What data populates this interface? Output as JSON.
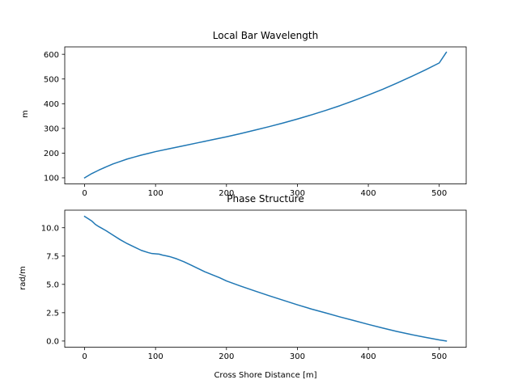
{
  "colors": {
    "series": "#1f77b4"
  },
  "chart_data": [
    {
      "type": "line",
      "title": "Local Bar Wavelength",
      "xlabel": "",
      "ylabel": "m",
      "xlim": [
        -28,
        538
      ],
      "ylim": [
        75,
        630
      ],
      "xticks": [
        0,
        100,
        200,
        300,
        400,
        500
      ],
      "yticks": [
        100,
        200,
        300,
        400,
        500,
        600
      ],
      "xtick_labels": [
        "0",
        "100",
        "200",
        "300",
        "400",
        "500"
      ],
      "ytick_labels": [
        "100",
        "200",
        "300",
        "400",
        "500",
        "600"
      ],
      "grid": false,
      "series": [
        {
          "x": [
            0,
            10,
            20,
            30,
            40,
            50,
            60,
            70,
            80,
            90,
            100,
            120,
            140,
            160,
            180,
            200,
            220,
            240,
            260,
            280,
            300,
            320,
            340,
            360,
            380,
            400,
            420,
            440,
            460,
            480,
            500,
            510
          ],
          "y": [
            100,
            117,
            131,
            144,
            156,
            166,
            176,
            184,
            192,
            199,
            206,
            218,
            230,
            242,
            254,
            266,
            279,
            293,
            307,
            322,
            338,
            355,
            373,
            392,
            413,
            435,
            458,
            483,
            509,
            536,
            565,
            608
          ]
        }
      ]
    },
    {
      "type": "line",
      "title": "Phase Structure",
      "xlabel": "Cross Shore Distance [m]",
      "ylabel": "rad/m",
      "xlim": [
        -28,
        538
      ],
      "ylim": [
        -0.55,
        11.55
      ],
      "xticks": [
        0,
        100,
        200,
        300,
        400,
        500
      ],
      "yticks": [
        0.0,
        2.5,
        5.0,
        7.5,
        10.0
      ],
      "xtick_labels": [
        "0",
        "100",
        "200",
        "300",
        "400",
        "500"
      ],
      "ytick_labels": [
        "0.0",
        "2.5",
        "5.0",
        "7.5",
        "10.0"
      ],
      "grid": false,
      "series": [
        {
          "x": [
            0,
            5,
            10,
            15,
            20,
            30,
            40,
            50,
            60,
            70,
            80,
            90,
            95,
            100,
            105,
            110,
            115,
            120,
            130,
            140,
            150,
            160,
            170,
            180,
            190,
            200,
            220,
            240,
            260,
            280,
            300,
            320,
            340,
            360,
            380,
            400,
            420,
            440,
            460,
            480,
            500,
            510
          ],
          "y": [
            11.0,
            10.8,
            10.6,
            10.3,
            10.1,
            9.75,
            9.35,
            8.95,
            8.6,
            8.3,
            8.0,
            7.8,
            7.72,
            7.7,
            7.67,
            7.58,
            7.52,
            7.45,
            7.25,
            7.0,
            6.7,
            6.4,
            6.1,
            5.85,
            5.6,
            5.3,
            4.85,
            4.42,
            4.0,
            3.6,
            3.2,
            2.82,
            2.48,
            2.13,
            1.8,
            1.47,
            1.15,
            0.85,
            0.58,
            0.33,
            0.1,
            0.0
          ]
        }
      ]
    }
  ]
}
